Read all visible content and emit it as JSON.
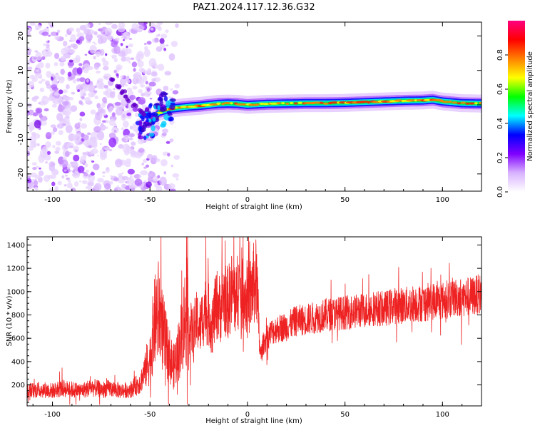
{
  "figure": {
    "title": "PAZ1.2024.117.12.36.G32"
  },
  "chart_data": [
    {
      "type": "heatmap",
      "name": "spectrogram",
      "xlabel": "Height of straight line (km)",
      "ylabel": "Frequency (Hz)",
      "xlim": [
        -113,
        120
      ],
      "ylim": [
        -25,
        24
      ],
      "x_ticks": [
        -100,
        -50,
        0,
        50,
        100
      ],
      "y_ticks": [
        -20,
        -10,
        0,
        10,
        20
      ],
      "grid": false,
      "description_of_values": "normalized spectral amplitude; scattered low-amplitude speckle for heights below about -38 km, a coherent high-amplitude ridge from about -50 km upward",
      "ridge": {
        "x": [
          -52,
          -48,
          -45,
          -42,
          -40,
          -38,
          -35,
          -30,
          -25,
          -20,
          -15,
          -10,
          -5,
          0,
          10,
          20,
          30,
          40,
          50,
          60,
          70,
          80,
          90,
          95,
          100,
          110,
          120
        ],
        "frequency": [
          -6,
          -4,
          -2,
          -1.5,
          -1.2,
          -1,
          -0.8,
          -0.5,
          -0.3,
          0,
          0.3,
          0.4,
          0.3,
          0,
          0.3,
          0.4,
          0.5,
          0.5,
          0.6,
          0.8,
          1,
          1.2,
          1.3,
          1.5,
          1.0,
          0.5,
          0.4
        ]
      },
      "colorbar": {
        "label": "Normalized spectral amplitude",
        "range": [
          0,
          1
        ],
        "ticks": [
          0.0,
          0.2,
          0.4,
          0.6,
          0.8
        ],
        "colors": [
          "#ffffff",
          "#d9b3ff",
          "#8000ff",
          "#0000ff",
          "#00ffff",
          "#00ff00",
          "#ffff00",
          "#ff8000",
          "#ff0000",
          "#ff0080"
        ]
      }
    },
    {
      "type": "line",
      "name": "snr",
      "xlabel": "Height of straight line (km)",
      "ylabel": "SNR (10 * v/v)",
      "xlim": [
        -113,
        120
      ],
      "ylim": [
        20,
        1470
      ],
      "x_ticks": [
        -100,
        -50,
        0,
        50,
        100
      ],
      "y_ticks": [
        200,
        400,
        600,
        800,
        1000,
        1200,
        1400
      ],
      "grid": false,
      "line_color": "#ee2222",
      "series": [
        {
          "x": [
            -113,
            -105,
            -100,
            -95,
            -90,
            -85,
            -80,
            -75,
            -70,
            -65,
            -60,
            -55,
            -52,
            -50,
            -48,
            -46,
            -44,
            -42,
            -40,
            -38,
            -36,
            -34,
            -32,
            -30,
            -28,
            -26,
            -24,
            -22,
            -20,
            -18,
            -16,
            -14,
            -12,
            -10,
            -8,
            -6,
            -4,
            -2,
            0,
            2,
            4,
            5,
            6,
            7,
            8,
            10,
            12,
            15,
            20,
            25,
            30,
            35,
            40,
            45,
            50,
            55,
            60,
            65,
            70,
            75,
            80,
            85,
            90,
            95,
            100,
            105,
            110,
            115,
            120
          ],
          "values": [
            150,
            160,
            150,
            170,
            160,
            150,
            180,
            160,
            170,
            150,
            160,
            220,
            350,
            420,
            700,
            850,
            700,
            550,
            450,
            350,
            450,
            600,
            800,
            700,
            650,
            750,
            700,
            850,
            800,
            700,
            900,
            850,
            950,
            900,
            1000,
            950,
            1050,
            1000,
            900,
            1000,
            1100,
            1050,
            550,
            450,
            550,
            600,
            650,
            680,
            700,
            750,
            760,
            780,
            800,
            810,
            820,
            830,
            840,
            860,
            850,
            880,
            880,
            900,
            900,
            920,
            920,
            950,
            950,
            960,
            980
          ]
        }
      ]
    }
  ]
}
